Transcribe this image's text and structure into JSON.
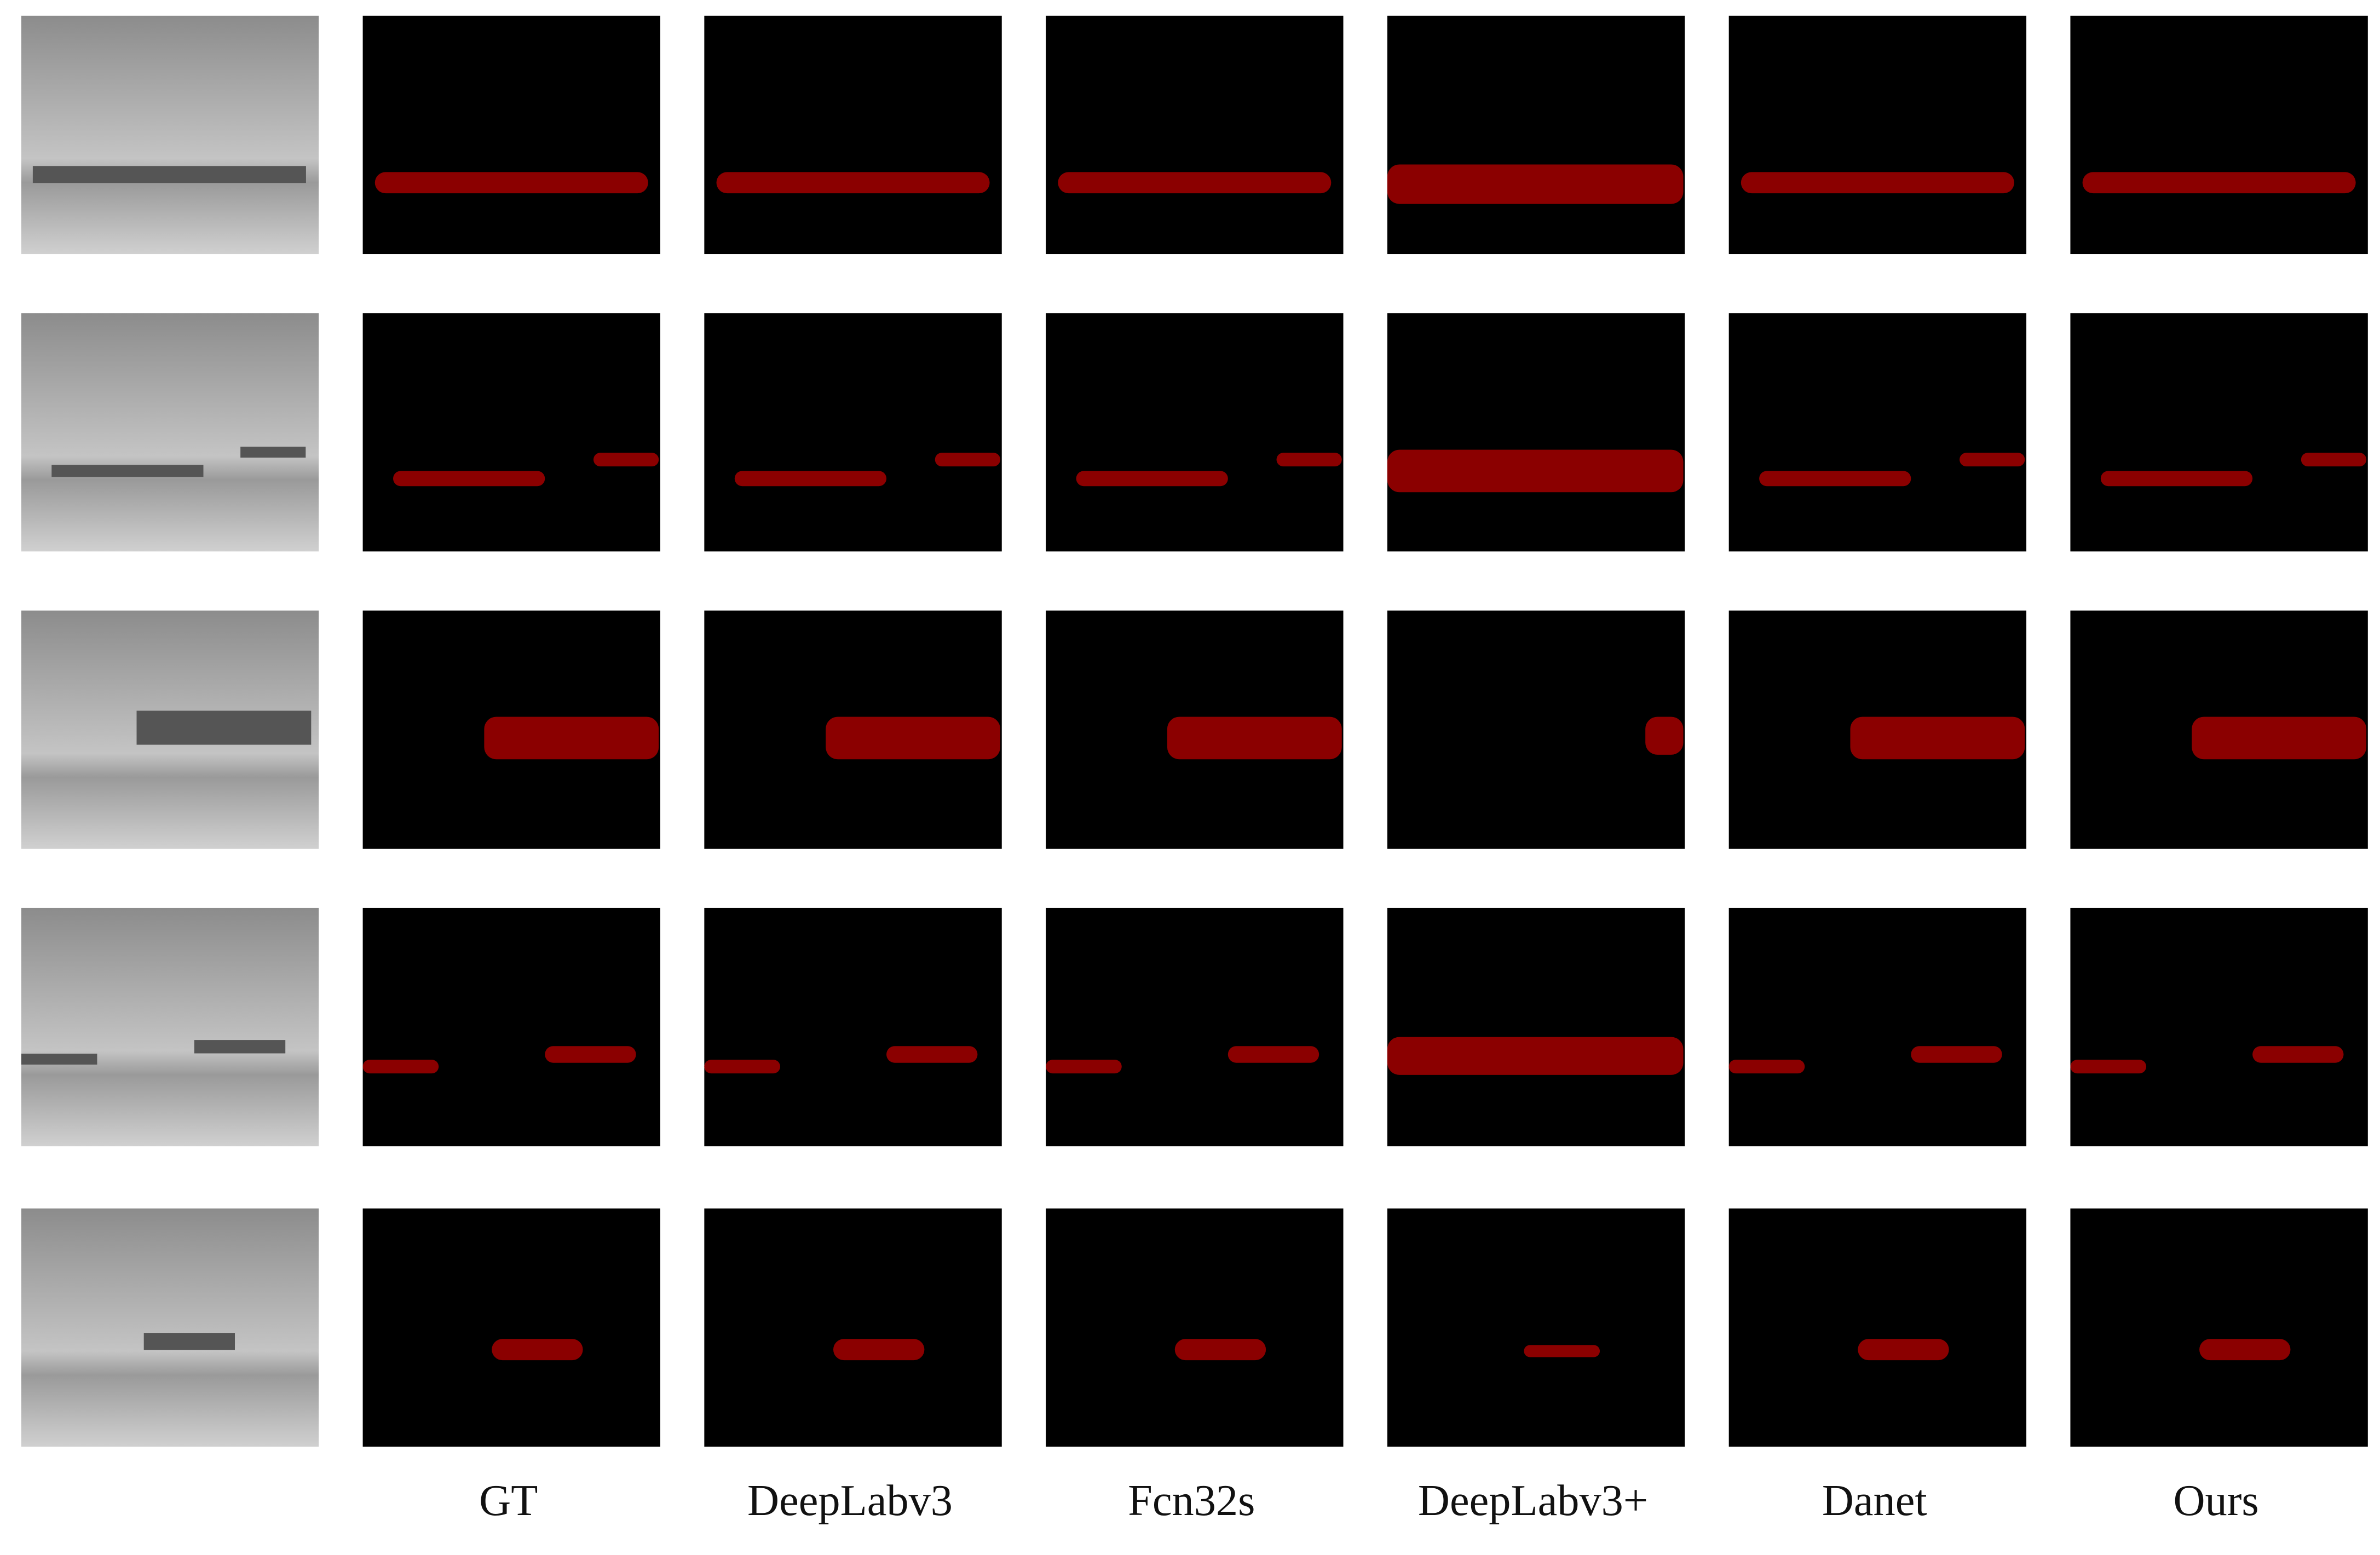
{
  "column_labels": [
    "GT",
    "DeepLabv3",
    "Fcn32s",
    "DeepLabv3+",
    "Danet",
    "Ours"
  ]
}
